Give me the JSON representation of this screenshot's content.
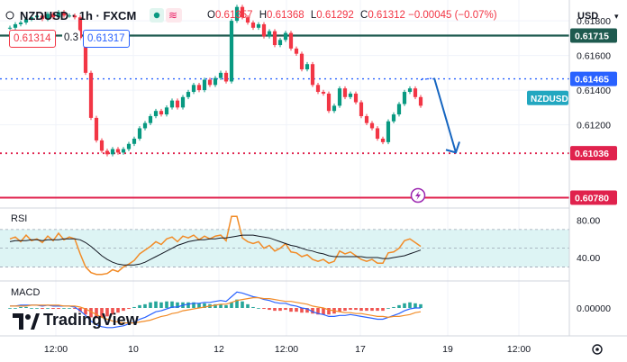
{
  "header": {
    "symbol": "NZDUSD",
    "interval": "1h",
    "exchange": "FXCM",
    "title": "NZDUSD · 1h · FXCM",
    "open_label": "O",
    "open": "0.61357",
    "high_label": "H",
    "high": "0.61368",
    "low_label": "L",
    "low": "0.61292",
    "close_label": "C",
    "close": "0.61312",
    "change": "−0.00045 (−0.07%)",
    "sell_price": "0.61314",
    "spread": "0.3",
    "buy_price": "0.61317"
  },
  "currency": "USD",
  "branding": {
    "name": "TradingView"
  },
  "colors": {
    "up": "#089981",
    "down": "#f23645",
    "rsi": "#f28c28",
    "rsi_ma": "#131722",
    "macd": "#2962ff",
    "signal": "#f28c28",
    "resistance": "#1e5a4f",
    "support_dotted": "#e0224d",
    "blue_dotted": "#2962ff",
    "solid_line": "#e0224d",
    "arrow": "#1565c0",
    "rsi_band": "#ddf4f4",
    "label_box": "#22a7c0"
  },
  "chart_data": [
    {
      "type": "candlestick",
      "panel": "price",
      "symbol": "NZDUSD",
      "timeframe": "1h",
      "x_ticks": [
        "12:00",
        "10",
        "12",
        "12:00",
        "17",
        "19",
        "12:00"
      ],
      "y_ticks": [
        0.618,
        0.616,
        0.614,
        0.612
      ],
      "ylim": [
        0.6072,
        0.6192
      ],
      "close_series": [
        0.6176,
        0.6178,
        0.6179,
        0.6181,
        0.6182,
        0.6183,
        0.6181,
        0.6184,
        0.6182,
        0.6185,
        0.6183,
        0.6183,
        0.6182,
        0.617,
        0.615,
        0.6124,
        0.6111,
        0.6105,
        0.6103,
        0.6106,
        0.6104,
        0.6106,
        0.6109,
        0.6112,
        0.6118,
        0.6121,
        0.6125,
        0.6128,
        0.6126,
        0.613,
        0.6134,
        0.613,
        0.6136,
        0.6139,
        0.6143,
        0.614,
        0.6146,
        0.6143,
        0.6147,
        0.615,
        0.6145,
        0.618,
        0.6188,
        0.6182,
        0.6179,
        0.6176,
        0.6178,
        0.6171,
        0.6174,
        0.6166,
        0.6169,
        0.6173,
        0.6164,
        0.6161,
        0.6152,
        0.6155,
        0.6143,
        0.6139,
        0.6138,
        0.6128,
        0.6131,
        0.6141,
        0.6136,
        0.6138,
        0.6133,
        0.6125,
        0.6121,
        0.6118,
        0.6112,
        0.611,
        0.6122,
        0.6126,
        0.6132,
        0.6139,
        0.6141,
        0.6136,
        0.6131
      ],
      "levels": [
        {
          "name": "resistance",
          "value": 0.61715,
          "label": "0.61715",
          "style": "solid"
        },
        {
          "name": "dotted-blue",
          "value": 0.61465,
          "label": "0.61465",
          "style": "dotted"
        },
        {
          "name": "dotted-red",
          "value": 0.61036,
          "label": "0.61036",
          "style": "dotted"
        },
        {
          "name": "solid-red",
          "value": 0.6078,
          "label": "0.60780",
          "style": "solid"
        }
      ],
      "symbol_label": "NZDUSD",
      "projection": [
        [
          76,
          0.6146
        ],
        [
          78.5,
          0.6147
        ],
        [
          82.5,
          0.6104
        ]
      ]
    },
    {
      "type": "line",
      "panel": "rsi",
      "title": "RSI",
      "y_ticks": [
        80,
        40
      ],
      "band": [
        30,
        70
      ],
      "ylim": [
        15,
        93
      ],
      "series": [
        {
          "name": "RSI",
          "values": [
            60,
            62,
            57,
            64,
            58,
            60,
            56,
            63,
            58,
            66,
            59,
            62,
            60,
            44,
            30,
            24,
            22,
            22,
            23,
            27,
            25,
            30,
            33,
            37,
            44,
            48,
            52,
            57,
            54,
            60,
            62,
            57,
            63,
            61,
            64,
            59,
            63,
            60,
            63,
            64,
            58,
            84,
            84,
            61,
            57,
            55,
            57,
            50,
            53,
            47,
            50,
            55,
            46,
            45,
            41,
            43,
            38,
            36,
            38,
            34,
            36,
            47,
            44,
            46,
            42,
            38,
            36,
            38,
            34,
            34,
            45,
            46,
            50,
            58,
            60,
            56,
            52
          ]
        },
        {
          "name": "MA",
          "values": [
            57,
            58,
            58,
            58,
            59,
            59,
            58,
            59,
            59,
            59,
            60,
            60,
            60,
            59,
            56,
            52,
            47,
            42,
            38,
            35,
            33,
            32,
            32,
            32,
            33,
            35,
            38,
            41,
            44,
            47,
            50,
            53,
            55,
            57,
            58,
            59,
            59,
            60,
            60,
            61,
            61,
            62,
            63,
            64,
            64,
            64,
            63,
            62,
            61,
            59,
            57,
            55,
            53,
            52,
            50,
            48,
            47,
            45,
            44,
            42,
            41,
            41,
            41,
            41,
            41,
            41,
            40,
            40,
            40,
            39,
            39,
            40,
            41,
            42,
            44,
            46,
            48
          ]
        }
      ]
    },
    {
      "type": "line",
      "panel": "macd",
      "title": "MACD",
      "y_ticks": [
        "0.00000"
      ],
      "ylim": [
        -0.0025,
        0.0025
      ],
      "series": [
        {
          "name": "MACD",
          "values": [
            0.0002,
            0.0002,
            0.0003,
            0.0003,
            0.0003,
            0.0003,
            0.0002,
            0.0003,
            0.0002,
            0.0002,
            0.0002,
            0.0002,
            0.0001,
            -0.0003,
            -0.0008,
            -0.0014,
            -0.0018,
            -0.002,
            -0.0021,
            -0.0021,
            -0.002,
            -0.0019,
            -0.0017,
            -0.0015,
            -0.0012,
            -0.001,
            -0.0007,
            -0.0004,
            -0.0003,
            -0.0001,
            0.0001,
            0.0001,
            0.0003,
            0.0004,
            0.0005,
            0.0005,
            0.0006,
            0.0006,
            0.0007,
            0.0008,
            0.0007,
            0.0012,
            0.0017,
            0.0016,
            0.0014,
            0.0012,
            0.0011,
            0.0009,
            0.0008,
            0.0006,
            0.0005,
            0.0005,
            0.0003,
            0.0002,
            0.0,
            -0.0001,
            -0.0004,
            -0.0006,
            -0.0007,
            -0.0009,
            -0.0009,
            -0.0008,
            -0.0008,
            -0.0007,
            -0.0008,
            -0.0009,
            -0.001,
            -0.0011,
            -0.0012,
            -0.0012,
            -0.001,
            -0.0008,
            -0.0006,
            -0.0003,
            -0.0001,
            0.0,
            0.0
          ]
        },
        {
          "name": "Signal",
          "values": [
            0.0002,
            0.0002,
            0.0002,
            0.0002,
            0.0003,
            0.0003,
            0.0003,
            0.0003,
            0.0003,
            0.0003,
            0.0002,
            0.0002,
            0.0002,
            0.0001,
            -0.0001,
            -0.0004,
            -0.0007,
            -0.001,
            -0.0012,
            -0.0014,
            -0.0015,
            -0.0016,
            -0.0016,
            -0.0016,
            -0.0015,
            -0.0014,
            -0.0013,
            -0.0011,
            -0.0009,
            -0.0008,
            -0.0006,
            -0.0005,
            -0.0003,
            -0.0002,
            -0.0001,
            0.0,
            0.0001,
            0.0002,
            0.0003,
            0.0004,
            0.0004,
            0.0006,
            0.0008,
            0.0009,
            0.001,
            0.0011,
            0.0011,
            0.001,
            0.001,
            0.0009,
            0.0008,
            0.0007,
            0.0007,
            0.0006,
            0.0005,
            0.0004,
            0.0002,
            0.0001,
            0.0,
            -0.0002,
            -0.0003,
            -0.0004,
            -0.0005,
            -0.0005,
            -0.0006,
            -0.0006,
            -0.0007,
            -0.0008,
            -0.0009,
            -0.0009,
            -0.001,
            -0.0009,
            -0.0009,
            -0.0008,
            -0.0007,
            -0.0005,
            -0.0004
          ]
        }
      ]
    }
  ]
}
